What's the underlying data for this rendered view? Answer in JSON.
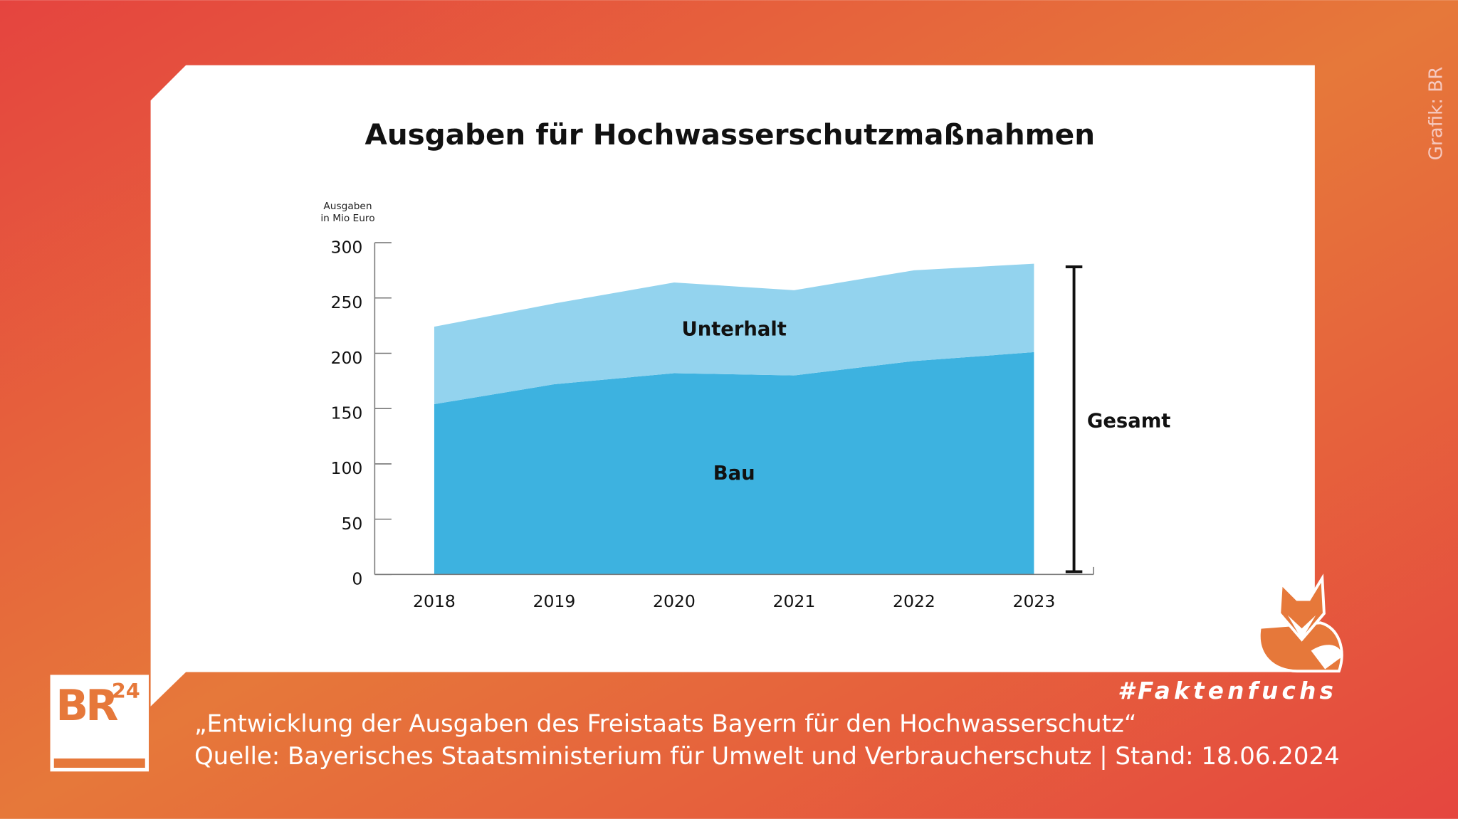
{
  "chart_data": {
    "type": "area",
    "title": "Ausgaben für Hochwasserschutzmaßnahmen",
    "ylabel": [
      "Ausgaben",
      "in Mio Euro"
    ],
    "categories": [
      "2018",
      "2019",
      "2020",
      "2021",
      "2022",
      "2023"
    ],
    "series": [
      {
        "name": "Bau",
        "color": "#3db2e0",
        "values": [
          154,
          172,
          182,
          180,
          193,
          201
        ]
      },
      {
        "name": "Unterhalt",
        "color": "#93d3ee",
        "values": [
          70,
          73,
          82,
          77,
          82,
          80
        ]
      }
    ],
    "stacked": true,
    "ylim": [
      0,
      300
    ],
    "yticks": [
      0,
      50,
      100,
      150,
      200,
      250,
      300
    ],
    "annotation": "Gesamt"
  },
  "credit": "Grafik: BR",
  "logo": {
    "text": "BR",
    "superscript": "24"
  },
  "hashtag": "#Faktenfuchs",
  "caption": [
    "„Entwicklung der Ausgaben des Freistaats Bayern für den Hochwasserschutz“",
    "Quelle: Bayerisches Staatsministerium für Umwelt und Verbraucherschutz | Stand: 18.06.2024"
  ]
}
